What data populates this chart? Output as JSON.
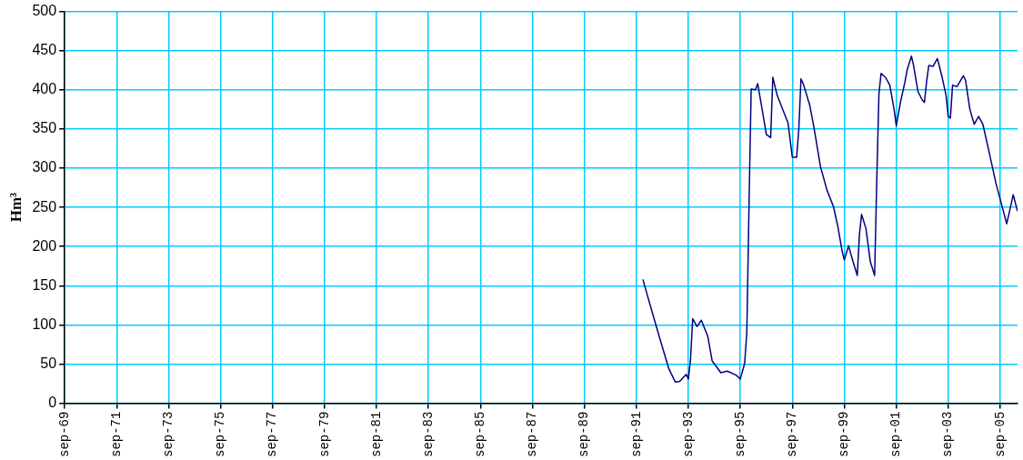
{
  "chart_data": {
    "type": "line",
    "ylabel": "Hm³",
    "grid": true,
    "legend": false,
    "marker": "none",
    "line_style": "solid",
    "xlim": [
      "1969-09",
      "2006-05"
    ],
    "xticks": [
      {
        "value": "1969-09",
        "label": "sep-69"
      },
      {
        "value": "1971-09",
        "label": "sep-71"
      },
      {
        "value": "1973-09",
        "label": "sep-73"
      },
      {
        "value": "1975-09",
        "label": "sep-75"
      },
      {
        "value": "1977-09",
        "label": "sep-77"
      },
      {
        "value": "1979-09",
        "label": "sep-79"
      },
      {
        "value": "1981-09",
        "label": "sep-81"
      },
      {
        "value": "1983-09",
        "label": "sep-83"
      },
      {
        "value": "1985-09",
        "label": "sep-85"
      },
      {
        "value": "1987-09",
        "label": "sep-87"
      },
      {
        "value": "1989-09",
        "label": "sep-89"
      },
      {
        "value": "1991-09",
        "label": "sep-91"
      },
      {
        "value": "1993-09",
        "label": "sep-93"
      },
      {
        "value": "1995-09",
        "label": "sep-95"
      },
      {
        "value": "1997-09",
        "label": "sep-97"
      },
      {
        "value": "1999-09",
        "label": "sep-99"
      },
      {
        "value": "2001-09",
        "label": "sep-01"
      },
      {
        "value": "2003-09",
        "label": "sep-03"
      },
      {
        "value": "2005-09",
        "label": "sep-05"
      }
    ],
    "ylim": [
      0,
      500
    ],
    "yticks": [
      0,
      50,
      100,
      150,
      200,
      250,
      300,
      350,
      400,
      450,
      500
    ],
    "series": [
      {
        "color": "#000080",
        "x": [
          "1991-12",
          "1992-04",
          "1992-08",
          "1992-12",
          "1993-03",
          "1993-05",
          "1993-08",
          "1993-09",
          "1993-10",
          "1993-11",
          "1994-01",
          "1994-03",
          "1994-06",
          "1994-08",
          "1994-12",
          "1995-03",
          "1995-07",
          "1995-09",
          "1995-11",
          "1995-12",
          "1996-01",
          "1996-02",
          "1996-04",
          "1996-05",
          "1996-07",
          "1996-09",
          "1996-11",
          "1996-12",
          "1997-02",
          "1997-05",
          "1997-07",
          "1997-09",
          "1997-11",
          "1997-12",
          "1998-01",
          "1998-02",
          "1998-05",
          "1998-07",
          "1998-10",
          "1999-01",
          "1999-04",
          "1999-06",
          "1999-08",
          "1999-09",
          "1999-11",
          "2000-01",
          "2000-03",
          "2000-04",
          "2000-05",
          "2000-07",
          "2000-09",
          "2000-11",
          "2000-12",
          "2001-01",
          "2001-02",
          "2001-04",
          "2001-06",
          "2001-08",
          "2001-09",
          "2001-11",
          "2002-01",
          "2002-02",
          "2002-04",
          "2002-05",
          "2002-07",
          "2002-09",
          "2002-10",
          "2002-11",
          "2002-12",
          "2003-02",
          "2003-04",
          "2003-06",
          "2003-08",
          "2003-09",
          "2003-10",
          "2003-11",
          "2004-01",
          "2004-04",
          "2004-05",
          "2004-07",
          "2004-09",
          "2004-11",
          "2005-01",
          "2005-04",
          "2005-07",
          "2005-10",
          "2005-12",
          "2006-03",
          "2006-05"
        ],
        "values": [
          158,
          119,
          81,
          44,
          27,
          28,
          37,
          31,
          56,
          108,
          98,
          106,
          85,
          54,
          39,
          41,
          36,
          31,
          51,
          91,
          251,
          401,
          400,
          408,
          376,
          343,
          339,
          416,
          393,
          372,
          358,
          314,
          314,
          350,
          414,
          408,
          381,
          352,
          302,
          272,
          251,
          226,
          194,
          183,
          201,
          181,
          163,
          216,
          241,
          223,
          181,
          163,
          285,
          395,
          421,
          416,
          406,
          375,
          354,
          385,
          410,
          425,
          443,
          431,
          398,
          387,
          384,
          410,
          431,
          430,
          440,
          418,
          393,
          366,
          364,
          406,
          404,
          418,
          412,
          375,
          356,
          366,
          356,
          319,
          281,
          250,
          229,
          266,
          245
        ]
      }
    ]
  }
}
